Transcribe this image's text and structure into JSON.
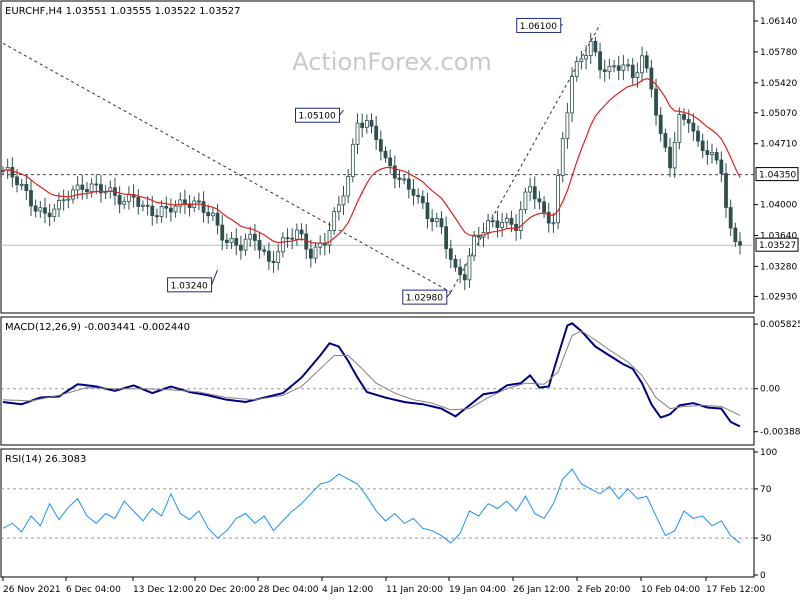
{
  "chart_data": [
    {
      "type": "candlestick",
      "title": "EURCHF,H4  1.03551 1.03555 1.03522 1.03527",
      "watermark": "ActionForex.com",
      "ylim": [
        1.0276,
        1.0635
      ],
      "ytick_labels": [
        {
          "value": 1.0614,
          "label": "1.06140"
        },
        {
          "value": 1.0578,
          "label": "1.05780"
        },
        {
          "value": 1.0542,
          "label": "1.05420"
        },
        {
          "value": 1.0507,
          "label": "1.05070"
        },
        {
          "value": 1.0471,
          "label": "1.04710"
        },
        {
          "value": 1.04,
          "label": "1.04000"
        },
        {
          "value": 1.0364,
          "label": "1.03640"
        },
        {
          "value": 1.0328,
          "label": "1.03280"
        },
        {
          "value": 1.0293,
          "label": "1.02930"
        }
      ],
      "price_markers": [
        {
          "value": 1.0435,
          "label": "1.04350",
          "style": "dashed"
        },
        {
          "value": 1.03527,
          "label": "1.03527",
          "style": "solid"
        }
      ],
      "annotations": [
        {
          "label": "1.03240",
          "value": 1.0324,
          "bar": 46
        },
        {
          "label": "1.05100",
          "value": 1.051,
          "bar": 73
        },
        {
          "label": "1.02980",
          "value": 1.0298,
          "bar": 96
        },
        {
          "label": "1.06100",
          "value": 1.061,
          "bar": 120
        }
      ],
      "trendlines": [
        {
          "from": {
            "bar": 0,
            "value": 1.0588
          },
          "to": {
            "bar": 96,
            "value": 1.0298
          }
        },
        {
          "from": {
            "bar": 96,
            "value": 1.0298
          },
          "to": {
            "bar": 128,
            "value": 1.061
          }
        }
      ],
      "moving_average_color": "#e02020",
      "candle_color": "#2f4f4f",
      "close_anchors": [
        [
          0,
          1.044
        ],
        [
          3,
          1.0425
        ],
        [
          6,
          1.0405
        ],
        [
          9,
          1.039
        ],
        [
          12,
          1.0395
        ],
        [
          14,
          1.041
        ],
        [
          17,
          1.0425
        ],
        [
          20,
          1.042
        ],
        [
          23,
          1.041
        ],
        [
          26,
          1.0405
        ],
        [
          28,
          1.0415
        ],
        [
          30,
          1.0395
        ],
        [
          33,
          1.0385
        ],
        [
          36,
          1.04
        ],
        [
          39,
          1.0405
        ],
        [
          42,
          1.0395
        ],
        [
          45,
          1.0385
        ],
        [
          48,
          1.036
        ],
        [
          51,
          1.035
        ],
        [
          54,
          1.036
        ],
        [
          57,
          1.0335
        ],
        [
          60,
          1.0355
        ],
        [
          63,
          1.0365
        ],
        [
          66,
          1.0345
        ],
        [
          69,
          1.036
        ],
        [
          72,
          1.0395
        ],
        [
          74,
          1.043
        ],
        [
          76,
          1.05
        ],
        [
          78,
          1.0498
        ],
        [
          80,
          1.048
        ],
        [
          82,
          1.0445
        ],
        [
          85,
          1.043
        ],
        [
          88,
          1.042
        ],
        [
          91,
          1.0385
        ],
        [
          94,
          1.037
        ],
        [
          97,
          1.0325
        ],
        [
          99,
          1.032
        ],
        [
          101,
          1.0355
        ],
        [
          104,
          1.0375
        ],
        [
          107,
          1.0385
        ],
        [
          110,
          1.0375
        ],
        [
          113,
          1.042
        ],
        [
          116,
          1.039
        ],
        [
          118,
          1.0385
        ],
        [
          120,
          1.0475
        ],
        [
          122,
          1.0545
        ],
        [
          124,
          1.057
        ],
        [
          126,
          1.059
        ],
        [
          128,
          1.0565
        ],
        [
          130,
          1.0555
        ],
        [
          133,
          1.056
        ],
        [
          135,
          1.055
        ],
        [
          137,
          1.0575
        ],
        [
          139,
          1.054
        ],
        [
          141,
          1.0475
        ],
        [
          143,
          1.0445
        ],
        [
          145,
          1.05
        ],
        [
          147,
          1.0505
        ],
        [
          149,
          1.047
        ],
        [
          151,
          1.046
        ],
        [
          153,
          1.0445
        ],
        [
          154,
          1.044
        ],
        [
          155,
          1.04
        ],
        [
          156,
          1.037
        ],
        [
          157,
          1.036
        ],
        [
          158,
          1.03527
        ]
      ],
      "xlabels": [
        "26 Nov 2021",
        "6 Dec 04:00",
        "13 Dec 12:00",
        "20 Dec 20:00",
        "28 Dec 04:00",
        "4 Jan 12:00",
        "11 Jan 20:00",
        "19 Jan 04:00",
        "26 Jan 12:00",
        "2 Feb 20:00",
        "10 Feb 04:00",
        "17 Feb 12:00"
      ]
    },
    {
      "type": "line",
      "title": "MACD(12,26,9) -0.003441 -0.002440",
      "ylim": [
        -0.0049,
        0.0062
      ],
      "ytick_labels": [
        {
          "value": 0.005825,
          "label": "0.005825"
        },
        {
          "value": 0.0,
          "label": "0.00"
        },
        {
          "value": -0.003882,
          "label": "-0.003882"
        }
      ],
      "zero_line": 0.0,
      "series": [
        {
          "color": "#000080",
          "values": [
            [
              0,
              -0.0012
            ],
            [
              4,
              -0.0014
            ],
            [
              8,
              -0.0008
            ],
            [
              12,
              -0.0007
            ],
            [
              16,
              0.0004
            ],
            [
              20,
              0.0002
            ],
            [
              24,
              -0.0002
            ],
            [
              28,
              0.0003
            ],
            [
              32,
              -0.0004
            ],
            [
              36,
              0.0002
            ],
            [
              40,
              -0.0003
            ],
            [
              44,
              -0.0006
            ],
            [
              48,
              -0.001
            ],
            [
              52,
              -0.0012
            ],
            [
              56,
              -0.0008
            ],
            [
              60,
              -0.0004
            ],
            [
              64,
              0.001
            ],
            [
              68,
              0.003
            ],
            [
              70,
              0.0041
            ],
            [
              72,
              0.0038
            ],
            [
              74,
              0.0025
            ],
            [
              76,
              0.001
            ],
            [
              78,
              -0.0003
            ],
            [
              82,
              -0.0008
            ],
            [
              86,
              -0.0012
            ],
            [
              90,
              -0.0014
            ],
            [
              94,
              -0.0018
            ],
            [
              97,
              -0.0025
            ],
            [
              100,
              -0.0015
            ],
            [
              103,
              -0.0005
            ],
            [
              106,
              -0.0003
            ],
            [
              108,
              0.0003
            ],
            [
              111,
              0.0005
            ],
            [
              113,
              0.0012
            ],
            [
              115,
              0.0001
            ],
            [
              117,
              0.0002
            ],
            [
              119,
              0.003
            ],
            [
              121,
              0.0057
            ],
            [
              122,
              0.0059
            ],
            [
              124,
              0.0052
            ],
            [
              127,
              0.0038
            ],
            [
              130,
              0.003
            ],
            [
              133,
              0.0022
            ],
            [
              135,
              0.0018
            ],
            [
              137,
              0.0005
            ],
            [
              139,
              -0.0014
            ],
            [
              141,
              -0.0026
            ],
            [
              143,
              -0.0023
            ],
            [
              145,
              -0.0015
            ],
            [
              148,
              -0.0013
            ],
            [
              151,
              -0.0017
            ],
            [
              154,
              -0.0018
            ],
            [
              156,
              -0.003
            ],
            [
              158,
              -0.0034
            ]
          ]
        },
        {
          "color": "#808080",
          "values": [
            [
              0,
              -0.001
            ],
            [
              6,
              -0.0011
            ],
            [
              12,
              -0.0006
            ],
            [
              18,
              0.0001
            ],
            [
              24,
              0.0
            ],
            [
              30,
              0.0
            ],
            [
              36,
              -0.0001
            ],
            [
              42,
              -0.0003
            ],
            [
              48,
              -0.0008
            ],
            [
              54,
              -0.001
            ],
            [
              60,
              -0.0006
            ],
            [
              64,
              0.0002
            ],
            [
              68,
              0.0018
            ],
            [
              71,
              0.003
            ],
            [
              74,
              0.003
            ],
            [
              77,
              0.0018
            ],
            [
              80,
              0.0005
            ],
            [
              84,
              -0.0004
            ],
            [
              88,
              -0.001
            ],
            [
              92,
              -0.0013
            ],
            [
              96,
              -0.0019
            ],
            [
              100,
              -0.0018
            ],
            [
              104,
              -0.0008
            ],
            [
              108,
              0.0
            ],
            [
              112,
              0.0005
            ],
            [
              116,
              0.0004
            ],
            [
              119,
              0.0015
            ],
            [
              122,
              0.0048
            ],
            [
              124,
              0.0052
            ],
            [
              127,
              0.0044
            ],
            [
              130,
              0.0035
            ],
            [
              134,
              0.0024
            ],
            [
              137,
              0.0012
            ],
            [
              140,
              -0.0008
            ],
            [
              143,
              -0.0018
            ],
            [
              146,
              -0.0016
            ],
            [
              150,
              -0.0015
            ],
            [
              154,
              -0.0016
            ],
            [
              158,
              -0.0024
            ]
          ]
        }
      ]
    },
    {
      "type": "line",
      "title": "RSI(14) 26.3083",
      "ylim": [
        0,
        100
      ],
      "ytick_labels": [
        {
          "value": 100,
          "label": "100"
        },
        {
          "value": 70,
          "label": "70"
        },
        {
          "value": 30,
          "label": "30"
        },
        {
          "value": 0,
          "label": "0"
        }
      ],
      "levels": [
        70,
        30
      ],
      "series": [
        {
          "color": "#1e90ff",
          "values": [
            [
              0,
              38
            ],
            [
              2,
              42
            ],
            [
              4,
              35
            ],
            [
              6,
              48
            ],
            [
              8,
              40
            ],
            [
              10,
              58
            ],
            [
              12,
              45
            ],
            [
              14,
              55
            ],
            [
              16,
              62
            ],
            [
              18,
              48
            ],
            [
              20,
              42
            ],
            [
              22,
              50
            ],
            [
              24,
              46
            ],
            [
              26,
              60
            ],
            [
              28,
              52
            ],
            [
              30,
              44
            ],
            [
              32,
              54
            ],
            [
              34,
              48
            ],
            [
              36,
              66
            ],
            [
              38,
              50
            ],
            [
              40,
              45
            ],
            [
              42,
              52
            ],
            [
              44,
              38
            ],
            [
              46,
              30
            ],
            [
              48,
              36
            ],
            [
              50,
              46
            ],
            [
              52,
              50
            ],
            [
              54,
              42
            ],
            [
              56,
              48
            ],
            [
              58,
              36
            ],
            [
              60,
              44
            ],
            [
              62,
              52
            ],
            [
              64,
              58
            ],
            [
              66,
              66
            ],
            [
              68,
              74
            ],
            [
              70,
              76
            ],
            [
              72,
              82
            ],
            [
              74,
              78
            ],
            [
              76,
              74
            ],
            [
              78,
              64
            ],
            [
              80,
              52
            ],
            [
              82,
              44
            ],
            [
              84,
              50
            ],
            [
              86,
              42
            ],
            [
              88,
              46
            ],
            [
              90,
              38
            ],
            [
              92,
              36
            ],
            [
              94,
              32
            ],
            [
              96,
              26
            ],
            [
              98,
              34
            ],
            [
              100,
              52
            ],
            [
              102,
              48
            ],
            [
              104,
              58
            ],
            [
              106,
              54
            ],
            [
              108,
              60
            ],
            [
              110,
              52
            ],
            [
              112,
              64
            ],
            [
              114,
              50
            ],
            [
              116,
              46
            ],
            [
              118,
              58
            ],
            [
              120,
              78
            ],
            [
              122,
              86
            ],
            [
              124,
              74
            ],
            [
              126,
              70
            ],
            [
              128,
              66
            ],
            [
              130,
              72
            ],
            [
              132,
              62
            ],
            [
              134,
              70
            ],
            [
              136,
              62
            ],
            [
              138,
              64
            ],
            [
              140,
              48
            ],
            [
              142,
              32
            ],
            [
              144,
              36
            ],
            [
              146,
              52
            ],
            [
              148,
              46
            ],
            [
              150,
              48
            ],
            [
              152,
              40
            ],
            [
              154,
              44
            ],
            [
              156,
              32
            ],
            [
              158,
              26
            ]
          ]
        }
      ]
    }
  ]
}
